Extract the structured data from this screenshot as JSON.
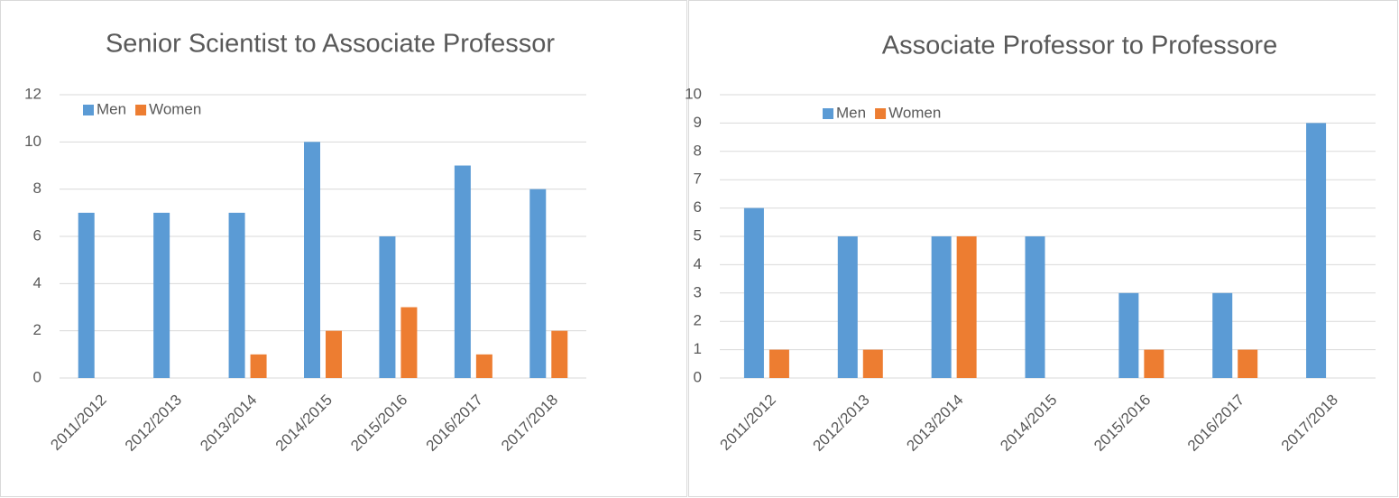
{
  "chart_data": [
    {
      "type": "bar",
      "title": "Senior Scientist to Associate Professor",
      "categories": [
        "2011/2012",
        "2012/2013",
        "2013/2014",
        "2014/2015",
        "2015/2016",
        "2016/2017",
        "2017/2018"
      ],
      "series": [
        {
          "name": "Men",
          "color": "#5b9bd5",
          "values": [
            7,
            7,
            7,
            10,
            6,
            9,
            8
          ]
        },
        {
          "name": "Women",
          "color": "#ed7d31",
          "values": [
            0,
            0,
            1,
            2,
            3,
            1,
            2
          ]
        }
      ],
      "ylim": [
        0,
        12
      ],
      "yticks": [
        0,
        2,
        4,
        6,
        8,
        10,
        12
      ],
      "grid": true,
      "legend": "top-left"
    },
    {
      "type": "bar",
      "title": "Associate Professor to Professore",
      "categories": [
        "2011/2012",
        "2012/2013",
        "2013/2014",
        "2014/2015",
        "2015/2016",
        "2016/2017",
        "2017/2018"
      ],
      "series": [
        {
          "name": "Men",
          "color": "#5b9bd5",
          "values": [
            6,
            5,
            5,
            5,
            3,
            3,
            9
          ]
        },
        {
          "name": "Women",
          "color": "#ed7d31",
          "values": [
            1,
            1,
            5,
            0,
            1,
            1,
            0
          ]
        }
      ],
      "ylim": [
        0,
        10
      ],
      "yticks": [
        0,
        1,
        2,
        3,
        4,
        5,
        6,
        7,
        8,
        9,
        10
      ],
      "grid": true,
      "legend": "top-left"
    }
  ]
}
